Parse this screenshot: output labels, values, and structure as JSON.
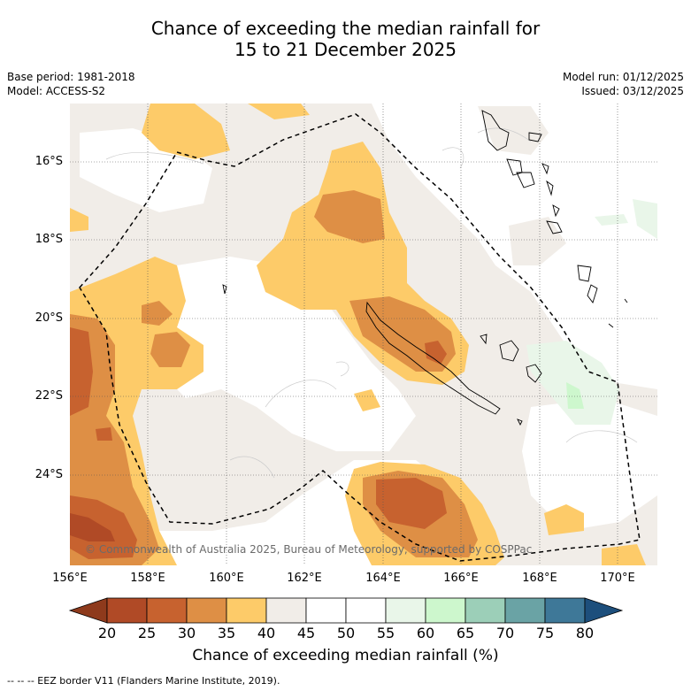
{
  "title_line1": "Chance of exceeding the median rainfall for",
  "title_line2": "15 to 21 December 2025",
  "base_period": "Base period: 1981-2018",
  "model": "Model: ACCESS-S2",
  "model_run": "Model run: 01/12/2025",
  "issued": "Issued: 03/12/2025",
  "copyright": "© Commonwealth of Australia 2025, Bureau of Meteorology, supported by COSPPac",
  "lat_labels": [
    "16°S",
    "18°S",
    "20°S",
    "22°S",
    "24°S"
  ],
  "lon_labels": [
    "156°E",
    "158°E",
    "160°E",
    "162°E",
    "164°E",
    "166°E",
    "168°E",
    "170°E"
  ],
  "colorbar": {
    "ticks": [
      "20",
      "25",
      "30",
      "35",
      "40",
      "45",
      "50",
      "55",
      "60",
      "65",
      "70",
      "75",
      "80"
    ],
    "colors": [
      "#8e3a1c",
      "#b04a26",
      "#c7622f",
      "#de8f45",
      "#fdcb69",
      "#f1ede8",
      "#ffffff",
      "#ffffff",
      "#e9f6e9",
      "#cdf7cd",
      "#9ccfb8",
      "#6aa3a5",
      "#3e7898",
      "#1d4f7c"
    ],
    "title": "Chance of exceeding median rainfall (%)"
  },
  "footer": "-- -- -- EEZ border V11 (Flanders Marine Institute, 2019)."
}
